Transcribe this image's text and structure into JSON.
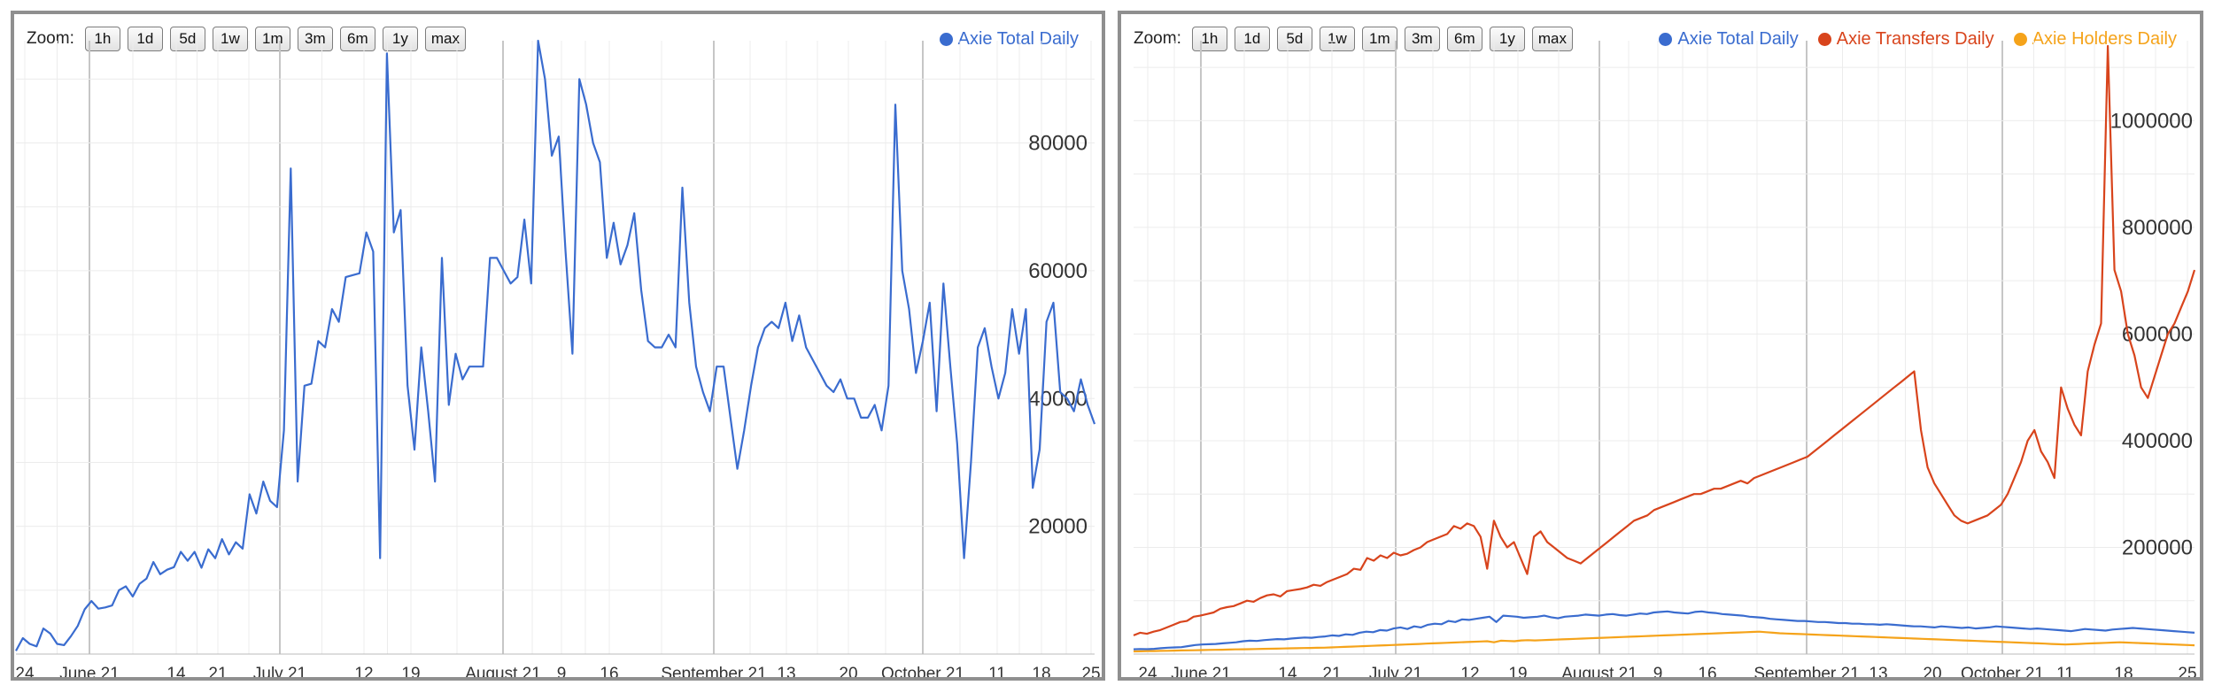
{
  "colors": {
    "total": "#3a6ccf",
    "transfers": "#d8441c",
    "holders": "#f5a31a",
    "grid_minor": "#ececec",
    "grid_major": "#c6c6c6",
    "border": "#8f8f8f"
  },
  "zoom": {
    "label": "Zoom:",
    "buttons": [
      "1h",
      "1d",
      "5d",
      "1w",
      "1m",
      "3m",
      "6m",
      "1y",
      "max"
    ]
  },
  "chart_data": [
    {
      "type": "line",
      "x_ticks": [
        "24",
        "June 21",
        "14",
        "21",
        "July 21",
        "12",
        "19",
        "August 21",
        "9",
        "16",
        "September 21",
        "13",
        "20",
        "October 21",
        "11",
        "18",
        "25"
      ],
      "y_ticks": [
        "20000",
        "40000",
        "60000",
        "80000"
      ],
      "y_axis_side": "right",
      "ylim": [
        0,
        96000
      ],
      "grid": true,
      "legend_position": "top-right",
      "series": [
        {
          "name": "Axie Total Daily",
          "color": "#3a6ccf",
          "values": [
            500,
            2500,
            1600,
            1200,
            4000,
            3200,
            1600,
            1400,
            2800,
            4400,
            7000,
            8300,
            7100,
            7300,
            7600,
            10000,
            10600,
            9000,
            11000,
            11800,
            14400,
            12500,
            13200,
            13600,
            16000,
            14600,
            16000,
            13500,
            16400,
            15000,
            18000,
            15600,
            17500,
            16500,
            25000,
            22000,
            27000,
            24000,
            23000,
            35000,
            76000,
            27000,
            42000,
            42300,
            49000,
            48000,
            54000,
            52000,
            59000,
            59300,
            59600,
            66000,
            63000,
            15000,
            94000,
            66000,
            69500,
            42000,
            32000,
            48000,
            38000,
            27000,
            62000,
            39000,
            47000,
            43000,
            45000,
            45000,
            45000,
            62000,
            62000,
            60000,
            58000,
            59000,
            68000,
            58000,
            96000,
            90000,
            78000,
            81000,
            63000,
            47000,
            90000,
            86000,
            80000,
            77000,
            62000,
            67500,
            61000,
            64000,
            69000,
            57000,
            49000,
            48000,
            48000,
            50000,
            48000,
            73000,
            55000,
            45000,
            41000,
            38000,
            45000,
            45000,
            37000,
            29000,
            35000,
            42000,
            48000,
            51000,
            52000,
            51000,
            55000,
            49000,
            53000,
            48000,
            46000,
            44000,
            42000,
            41000,
            43000,
            40000,
            40000,
            37000,
            37000,
            39000,
            35000,
            42000,
            86000,
            60000,
            54000,
            44000,
            49000,
            55000,
            38000,
            58000,
            45000,
            33000,
            15000,
            30000,
            48000,
            51000,
            45000,
            40000,
            44000,
            54000,
            47000,
            54000,
            26000,
            32000,
            52000,
            55000,
            41000,
            40000,
            38000,
            43000,
            39000,
            36000
          ]
        }
      ]
    },
    {
      "type": "line",
      "x_ticks": [
        "24",
        "June 21",
        "14",
        "21",
        "July 21",
        "12",
        "19",
        "August 21",
        "9",
        "16",
        "September 21",
        "13",
        "20",
        "October 21",
        "11",
        "18",
        "25"
      ],
      "y_ticks": [
        "200000",
        "400000",
        "600000",
        "800000",
        "1000000"
      ],
      "y_axis_side": "right",
      "ylim": [
        0,
        1150000
      ],
      "grid": true,
      "legend_position": "top-right",
      "series": [
        {
          "name": "Axie Total Daily",
          "color": "#3a6ccf",
          "values": [
            9000,
            9500,
            9200,
            9800,
            11000,
            12000,
            12500,
            13000,
            15000,
            17000,
            18000,
            18500,
            19000,
            20000,
            21000,
            22000,
            24000,
            25000,
            24500,
            26000,
            27000,
            28000,
            27500,
            29000,
            30000,
            31000,
            30500,
            32000,
            33000,
            35000,
            34000,
            37000,
            36000,
            40000,
            42000,
            41000,
            45000,
            44000,
            48000,
            50000,
            47000,
            52000,
            50000,
            55000,
            57000,
            56000,
            62000,
            60000,
            65000,
            64000,
            66000,
            68000,
            70000,
            60000,
            72000,
            71000,
            70000,
            68000,
            69000,
            70000,
            72000,
            69000,
            67000,
            70000,
            71000,
            72000,
            74000,
            73000,
            72000,
            74000,
            75000,
            73000,
            72000,
            74000,
            76000,
            75000,
            78000,
            79000,
            80000,
            78000,
            77000,
            76000,
            79000,
            80000,
            78000,
            77000,
            75000,
            74000,
            73000,
            72000,
            70000,
            69000,
            68000,
            66000,
            65000,
            64000,
            63000,
            62000,
            62000,
            61000,
            60000,
            60000,
            59000,
            58000,
            58000,
            57000,
            57000,
            56000,
            56000,
            55000,
            56000,
            55000,
            54000,
            53000,
            52000,
            52000,
            51000,
            50000,
            52000,
            51000,
            50000,
            49000,
            50000,
            48000,
            49000,
            50000,
            52000,
            51000,
            50000,
            49000,
            48000,
            47000,
            48000,
            47000,
            46000,
            45000,
            44000,
            43000,
            45000,
            47000,
            46000,
            45000,
            44000,
            46000,
            47000,
            48000,
            49000,
            48000,
            47000,
            46000,
            45000,
            44000,
            43000,
            42000,
            41000,
            40000
          ]
        },
        {
          "name": "Axie Transfers Daily",
          "color": "#d8441c",
          "values": [
            35000,
            40000,
            38000,
            42000,
            45000,
            50000,
            55000,
            60000,
            62000,
            70000,
            72000,
            75000,
            78000,
            85000,
            88000,
            90000,
            95000,
            100000,
            98000,
            105000,
            110000,
            112000,
            108000,
            118000,
            120000,
            122000,
            125000,
            130000,
            128000,
            135000,
            140000,
            145000,
            150000,
            160000,
            158000,
            180000,
            175000,
            185000,
            180000,
            190000,
            185000,
            188000,
            195000,
            200000,
            210000,
            215000,
            220000,
            225000,
            240000,
            235000,
            245000,
            240000,
            220000,
            160000,
            250000,
            220000,
            200000,
            210000,
            180000,
            150000,
            220000,
            230000,
            210000,
            200000,
            190000,
            180000,
            175000,
            170000,
            180000,
            190000,
            200000,
            210000,
            220000,
            230000,
            240000,
            250000,
            255000,
            260000,
            270000,
            275000,
            280000,
            285000,
            290000,
            295000,
            300000,
            300000,
            305000,
            310000,
            310000,
            315000,
            320000,
            325000,
            320000,
            330000,
            335000,
            340000,
            345000,
            350000,
            355000,
            360000,
            365000,
            370000,
            380000,
            390000,
            400000,
            410000,
            420000,
            430000,
            440000,
            450000,
            460000,
            470000,
            480000,
            490000,
            500000,
            510000,
            520000,
            530000,
            420000,
            350000,
            320000,
            300000,
            280000,
            260000,
            250000,
            245000,
            250000,
            255000,
            260000,
            270000,
            280000,
            300000,
            330000,
            360000,
            400000,
            420000,
            380000,
            360000,
            330000,
            500000,
            460000,
            430000,
            410000,
            530000,
            580000,
            620000,
            1140000,
            720000,
            680000,
            600000,
            560000,
            500000,
            480000,
            520000,
            560000,
            600000,
            620000,
            650000,
            680000,
            720000
          ]
        },
        {
          "name": "Axie Holders Daily",
          "color": "#f5a31a",
          "values": [
            5000,
            5200,
            5500,
            5600,
            6000,
            6200,
            6500,
            6800,
            7000,
            7200,
            7500,
            7800,
            8000,
            8200,
            8500,
            8800,
            9000,
            9200,
            9500,
            9800,
            10000,
            10200,
            10500,
            10800,
            11000,
            11300,
            11500,
            11800,
            12000,
            12500,
            13000,
            13500,
            14000,
            14500,
            15000,
            15500,
            16000,
            16500,
            17000,
            17500,
            18000,
            18500,
            19000,
            19500,
            20000,
            20500,
            21000,
            21500,
            22000,
            22500,
            23000,
            23500,
            24000,
            22000,
            25000,
            24500,
            24000,
            25500,
            26000,
            25500,
            26000,
            26500,
            27000,
            27500,
            28000,
            28500,
            29000,
            29500,
            30000,
            30500,
            31000,
            31500,
            32000,
            32500,
            33000,
            33500,
            34000,
            34500,
            35000,
            35500,
            36000,
            36500,
            37000,
            37500,
            38000,
            38500,
            39000,
            39500,
            40000,
            40500,
            41000,
            41500,
            42000,
            41000,
            40000,
            39000,
            38500,
            38000,
            37500,
            37000,
            36500,
            36000,
            35500,
            35000,
            34500,
            34000,
            33500,
            33000,
            32500,
            32000,
            31500,
            31000,
            30500,
            30000,
            29500,
            29000,
            28500,
            28000,
            27500,
            27000,
            26500,
            26000,
            25500,
            25000,
            24500,
            24000,
            23500,
            23000,
            22500,
            22000,
            21500,
            21000,
            20500,
            20000,
            19500,
            19000,
            18500,
            18000,
            18500,
            19000,
            19500,
            20000,
            20500,
            21000,
            21500,
            22000,
            21500,
            21000,
            20500,
            20000,
            19500,
            19000,
            18500,
            18000,
            17500,
            17000,
            16500
          ]
        }
      ]
    }
  ]
}
